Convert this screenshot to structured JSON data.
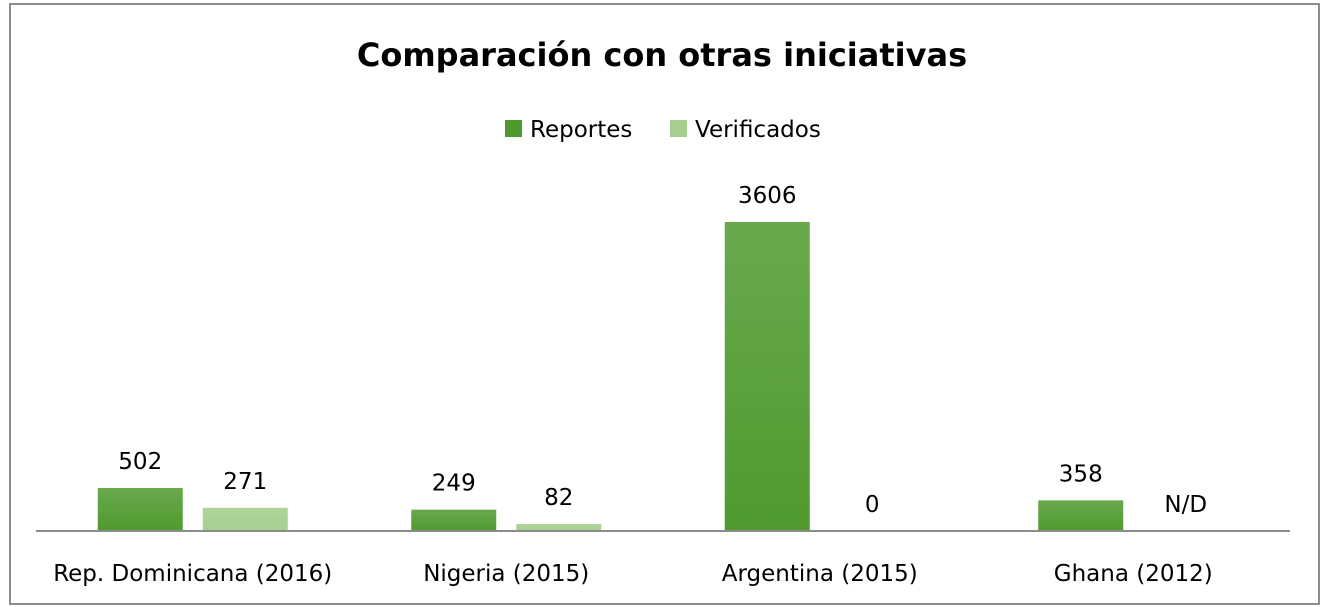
{
  "chart_data": {
    "type": "bar",
    "title": "Comparación con otras iniciativas",
    "categories": [
      "Rep. Dominicana (2016)",
      "Nigeria (2015)",
      "Argentina (2015)",
      "Ghana (2012)"
    ],
    "series": [
      {
        "name": "Reportes",
        "values": [
          502,
          249,
          3606,
          358
        ],
        "labels": [
          "502",
          "249",
          "3606",
          "358"
        ],
        "color": "#4f9a2e"
      },
      {
        "name": "Verificados",
        "values": [
          271,
          82,
          0,
          null
        ],
        "labels": [
          "271",
          "82",
          "0",
          "N/D"
        ],
        "color": "#a6cf8f"
      }
    ],
    "legend_position": "top-center",
    "grid": false,
    "ylim": [
      0,
      3800
    ]
  }
}
